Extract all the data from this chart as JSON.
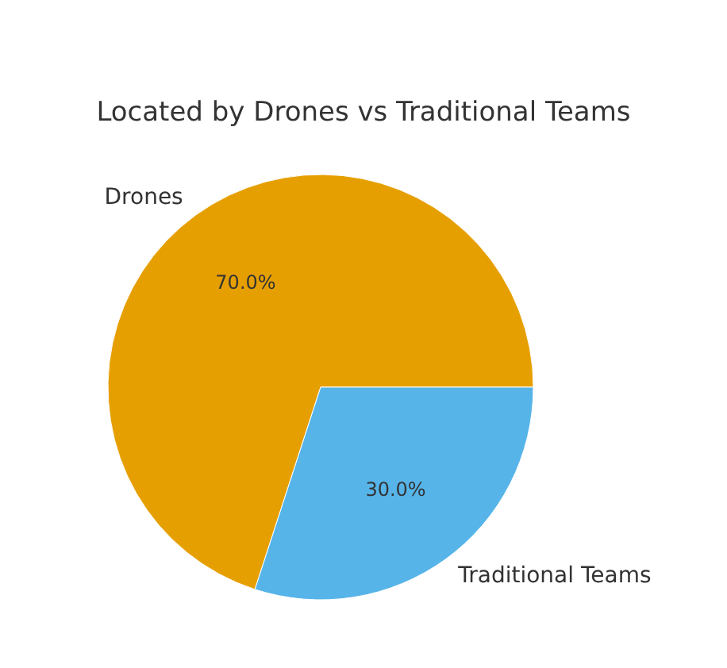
{
  "chart_data": {
    "type": "pie",
    "title": "Located by Drones vs Traditional Teams",
    "categories": [
      "Drones",
      "Traditional Teams"
    ],
    "values": [
      70,
      30
    ],
    "colors": [
      "#e69f00",
      "#56b4e9"
    ],
    "value_labels": [
      "70.0%",
      "30.0%"
    ]
  }
}
